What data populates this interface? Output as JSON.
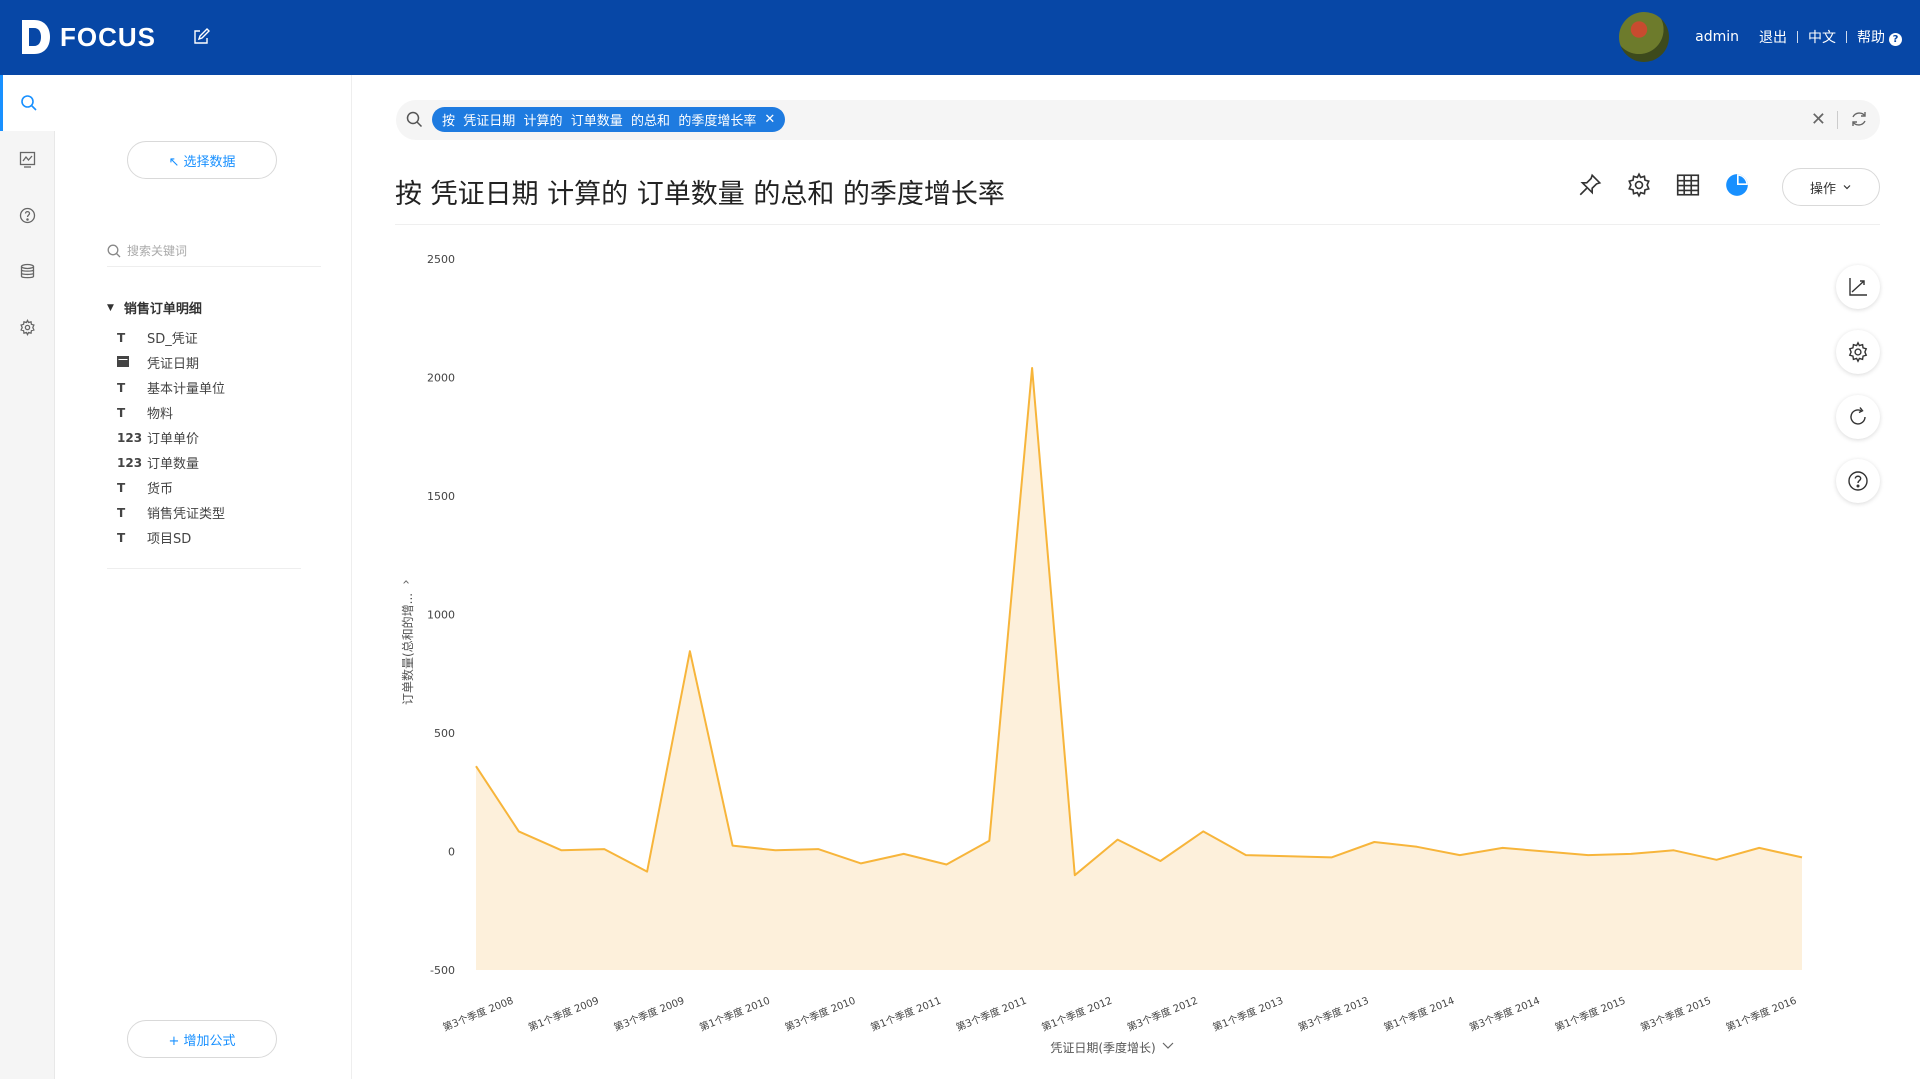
{
  "app": {
    "brand": "FOCUS",
    "user": "admin",
    "logout": "退出",
    "language": "中文",
    "help": "帮助"
  },
  "rail": [
    "search-icon",
    "board-icon",
    "help-circle-icon",
    "database-icon",
    "gear-icon"
  ],
  "side": {
    "select_data": "↖ 选择数据",
    "search_placeholder": "搜索关键词",
    "table_name": "销售订单明细",
    "fields": [
      {
        "type": "T",
        "label": "SD_凭证"
      },
      {
        "type": "date",
        "label": "凭证日期"
      },
      {
        "type": "T",
        "label": "基本计量单位"
      },
      {
        "type": "T",
        "label": "物料"
      },
      {
        "type": "123",
        "label": "订单单价"
      },
      {
        "type": "123",
        "label": "订单数量"
      },
      {
        "type": "T",
        "label": "货币"
      },
      {
        "type": "T",
        "label": "销售凭证类型"
      },
      {
        "type": "T",
        "label": "项目SD"
      }
    ],
    "add_formula": "+ 增加公式"
  },
  "search": {
    "chip": "按  凭证日期  计算的  订单数量  的总和  的季度增长率"
  },
  "main": {
    "title": "按 凭证日期 计算的 订单数量 的总和 的季度增长率",
    "ops": "操作"
  },
  "colors": {
    "header": "#0747a6",
    "accent": "#1890ff",
    "line": "#f7b53b",
    "area": "#fdf0db"
  },
  "chart_data": {
    "type": "area",
    "ylabel": "订单数量(总和的增...",
    "xlabel": "凭证日期(季度增长)",
    "ylim": [
      -500,
      2500
    ],
    "yticks": [
      2500,
      2000,
      1500,
      1000,
      500,
      0,
      -500
    ],
    "tick_labels": [
      "第3个季度 2008",
      "第1个季度 2009",
      "第3个季度 2009",
      "第1个季度 2010",
      "第3个季度 2010",
      "第1个季度 2011",
      "第3个季度 2011",
      "第1个季度 2012",
      "第3个季度 2012",
      "第1个季度 2013",
      "第3个季度 2013",
      "第1个季度 2014",
      "第3个季度 2014",
      "第1个季度 2015",
      "第3个季度 2015",
      "第1个季度 2016"
    ],
    "values": [
      360,
      85,
      5,
      10,
      -85,
      845,
      25,
      5,
      10,
      -50,
      -10,
      -55,
      45,
      2040,
      -100,
      50,
      -40,
      85,
      -15,
      -20,
      -25,
      40,
      20,
      -15,
      15,
      0,
      -15,
      -10,
      5,
      -35,
      15,
      -25
    ]
  }
}
